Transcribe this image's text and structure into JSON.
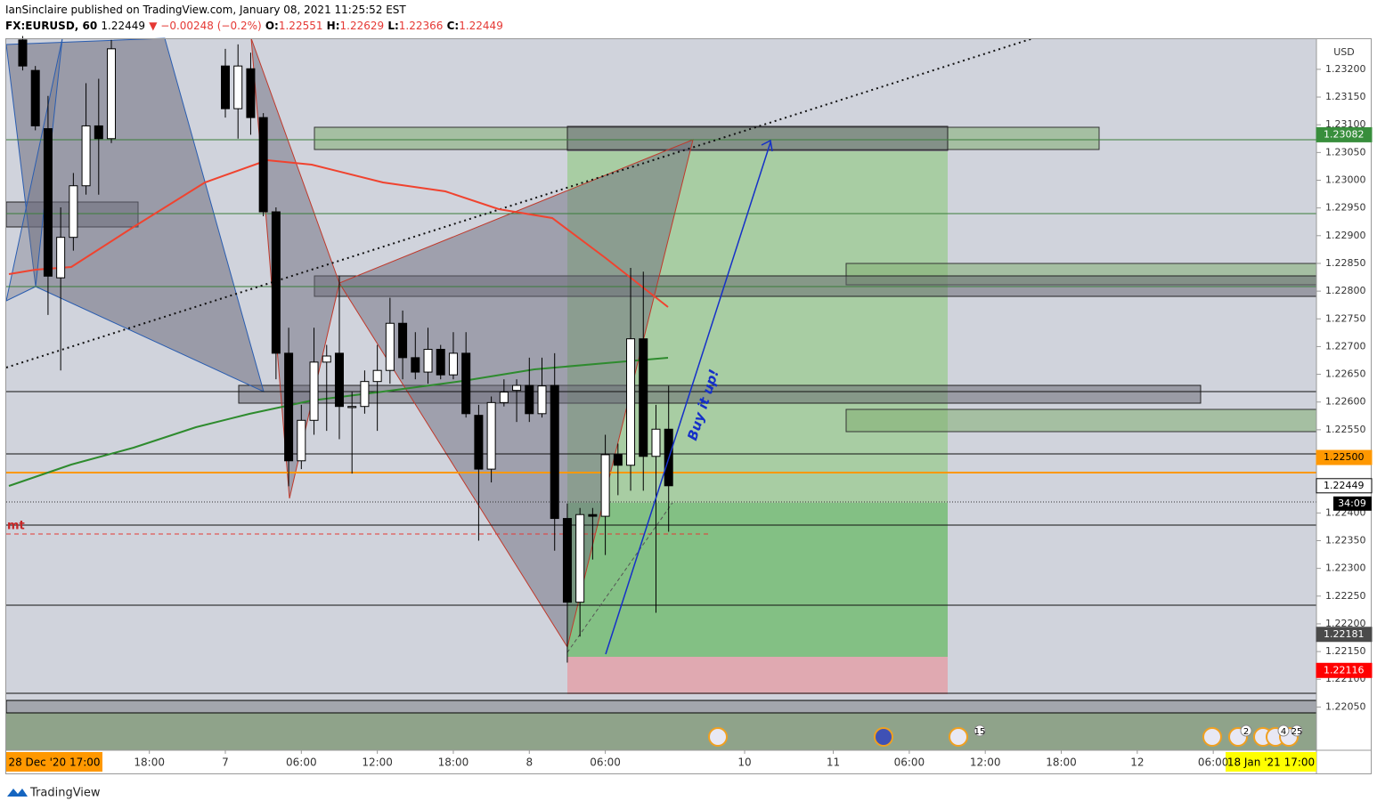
{
  "header": {
    "title": "IanSinclaire published on TradingView.com, January 08, 2021 11:25:52 EST",
    "symbol": "FX:EURUSD, 60",
    "last": "1.22449",
    "change": "▼ −0.00248 (−0.2%)",
    "ohlc": [
      {
        "key": "O:",
        "value": "1.22551"
      },
      {
        "key": "H:",
        "value": "1.22629"
      },
      {
        "key": "L:",
        "value": "1.22366"
      },
      {
        "key": "C:",
        "value": "1.22449"
      }
    ]
  },
  "chart_data": {
    "type": "candlestick",
    "currency": "USD",
    "ylim": [
      1.21972,
      1.23256
    ],
    "yticks": [
      {
        "value": 1.232,
        "label": "1.23200"
      },
      {
        "value": 1.2315,
        "label": "1.23150"
      },
      {
        "value": 1.231,
        "label": "1.23100"
      },
      {
        "value": 1.2305,
        "label": "1.23050"
      },
      {
        "value": 1.23,
        "label": "1.23000"
      },
      {
        "value": 1.2295,
        "label": "1.22950"
      },
      {
        "value": 1.229,
        "label": "1.22900"
      },
      {
        "value": 1.2285,
        "label": "1.22850"
      },
      {
        "value": 1.228,
        "label": "1.22800"
      },
      {
        "value": 1.2275,
        "label": "1.22750"
      },
      {
        "value": 1.227,
        "label": "1.22700"
      },
      {
        "value": 1.2265,
        "label": "1.22650"
      },
      {
        "value": 1.226,
        "label": "1.22600"
      },
      {
        "value": 1.2255,
        "label": "1.22550"
      },
      {
        "value": 1.224,
        "label": "1.22400"
      },
      {
        "value": 1.2235,
        "label": "1.22350"
      },
      {
        "value": 1.223,
        "label": "1.22300"
      },
      {
        "value": 1.2225,
        "label": "1.22250"
      },
      {
        "value": 1.222,
        "label": "1.22200"
      },
      {
        "value": 1.2215,
        "label": "1.22150"
      },
      {
        "value": 1.221,
        "label": "1.22100"
      },
      {
        "value": 1.2205,
        "label": "1.22050"
      }
    ],
    "xticks": [
      {
        "value": -6,
        "label": "18:00"
      },
      {
        "value": 0,
        "label": "7"
      },
      {
        "value": 6,
        "label": "06:00"
      },
      {
        "value": 12,
        "label": "12:00"
      },
      {
        "value": 18,
        "label": "18:00"
      },
      {
        "value": 24,
        "label": "8"
      },
      {
        "value": 30,
        "label": "06:00"
      },
      {
        "value": 41,
        "label": "10"
      },
      {
        "value": 48,
        "label": "11"
      },
      {
        "value": 54,
        "label": "06:00"
      },
      {
        "value": 60,
        "label": "12:00"
      },
      {
        "value": 66,
        "label": "18:00"
      },
      {
        "value": 72,
        "label": "12"
      },
      {
        "value": 78,
        "label": "06:00"
      }
    ],
    "crosshair_left": "28 Dec '20  17:00",
    "crosshair_right": "18 Jan '21  17:00",
    "x": [
      -16,
      -15,
      -14,
      -13,
      -12,
      -11,
      -10,
      -9,
      0,
      1,
      2,
      3,
      4,
      5,
      6,
      7,
      8,
      9,
      10,
      11,
      12,
      13,
      14,
      15,
      16,
      17,
      18,
      19,
      20,
      21,
      22,
      23,
      24,
      25,
      26,
      27,
      28,
      29,
      30,
      31,
      32,
      33,
      34,
      35
    ],
    "open": [
      1.23253,
      1.23198,
      1.23093,
      1.22824,
      1.22897,
      1.2299,
      1.23098,
      1.23075,
      1.23206,
      1.23129,
      1.23201,
      1.23113,
      1.22943,
      1.22688,
      1.22494,
      1.22567,
      1.22672,
      1.22688,
      1.2259,
      1.22592,
      1.22637,
      1.22657,
      1.22742,
      1.2268,
      1.22654,
      1.22695,
      1.22649,
      1.22688,
      1.22576,
      1.22479,
      1.22599,
      1.22621,
      1.2263,
      1.22579,
      1.2263,
      1.2239,
      1.22239,
      1.22397,
      1.22394,
      1.22505,
      1.22486,
      1.22714,
      1.22502,
      1.22551
    ],
    "high": [
      1.2326,
      1.23206,
      1.23152,
      1.22951,
      1.23013,
      1.23175,
      1.23183,
      1.23253,
      1.23237,
      1.23245,
      1.2323,
      1.23121,
      1.22951,
      1.22734,
      1.22595,
      1.22734,
      1.22703,
      1.22827,
      1.22618,
      1.22657,
      1.22703,
      1.22788,
      1.22765,
      1.22726,
      1.22734,
      1.22703,
      1.22726,
      1.22726,
      1.22595,
      1.2261,
      1.22641,
      1.22641,
      1.2268,
      1.2268,
      1.22688,
      1.22417,
      1.22409,
      1.22409,
      1.22541,
      1.22525,
      1.22842,
      1.22835,
      1.22595,
      1.22629
    ],
    "low": [
      1.23198,
      1.2309,
      1.22757,
      1.22657,
      1.22873,
      1.22974,
      1.22974,
      1.23067,
      1.23113,
      1.23075,
      1.23082,
      1.22935,
      1.22641,
      1.22448,
      1.22479,
      1.22541,
      1.22548,
      1.22533,
      1.22471,
      1.22579,
      1.22548,
      1.22633,
      1.22641,
      1.22641,
      1.22633,
      1.22641,
      1.22641,
      1.22572,
      1.2235,
      1.22455,
      1.22592,
      1.22564,
      1.22564,
      1.22572,
      1.22332,
      1.2213,
      1.22177,
      1.22316,
      1.22324,
      1.22432,
      1.2244,
      1.2244,
      1.2222,
      1.22366
    ],
    "close": [
      1.23206,
      1.23098,
      1.22827,
      1.22897,
      1.2299,
      1.23098,
      1.23075,
      1.23237,
      1.23129,
      1.23206,
      1.23113,
      1.22943,
      1.22688,
      1.22494,
      1.22567,
      1.22672,
      1.22683,
      1.22592,
      1.22592,
      1.22637,
      1.22657,
      1.22742,
      1.2268,
      1.22654,
      1.22695,
      1.22649,
      1.22688,
      1.22579,
      1.22479,
      1.22599,
      1.22618,
      1.2263,
      1.22579,
      1.22629,
      1.2239,
      1.22239,
      1.22397,
      1.22394,
      1.22505,
      1.22486,
      1.22714,
      1.22502,
      1.22551,
      1.22449
    ],
    "price_tags": [
      {
        "value": 1.23082,
        "label": "1.23082",
        "color": "#388e3c",
        "text_color": "#ffffff"
      },
      {
        "value": 1.225,
        "label": "1.22500",
        "color": "#ff9800",
        "text_color": "#000000"
      },
      {
        "value": 1.22449,
        "label": "1.22449",
        "color": "#ffffff",
        "text_color": "#000000"
      },
      {
        "value": 1.22181,
        "label": "1.22181",
        "color": "#4a4a4a",
        "text_color": "#ffffff"
      },
      {
        "value": 1.22116,
        "label": "1.22116",
        "color": "#ff0000",
        "text_color": "#ffffff"
      }
    ],
    "countdown": "34:09",
    "annotation": "Buy it up!",
    "left_label": "mt",
    "event_badges": [
      "15",
      "2",
      "4",
      "25"
    ]
  },
  "footer": {
    "brand": "TradingView"
  }
}
